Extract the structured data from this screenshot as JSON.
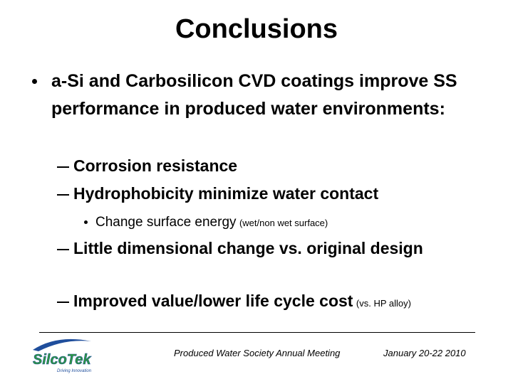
{
  "title": "Conclusions",
  "bullets": [
    {
      "text": "a-Si and Carbosilicon CVD coatings improve SS performance in produced water environments:",
      "items": [
        {
          "text": "Corrosion resistance"
        },
        {
          "text": "Hydrophobicity minimize water contact",
          "items": [
            {
              "text": "Change surface energy",
              "note": "(wet/non wet surface)"
            }
          ]
        },
        {
          "text": "Little dimensional change vs. original design"
        },
        {
          "text": "Improved value/lower life cycle cost",
          "note": "(vs. HP alloy)"
        }
      ]
    }
  ],
  "footer": {
    "logo": {
      "name": "SilcoTek",
      "tagline": "Driving Innovation"
    },
    "event": "Produced Water Society Annual Meeting",
    "date": "January 20-22 2010"
  }
}
